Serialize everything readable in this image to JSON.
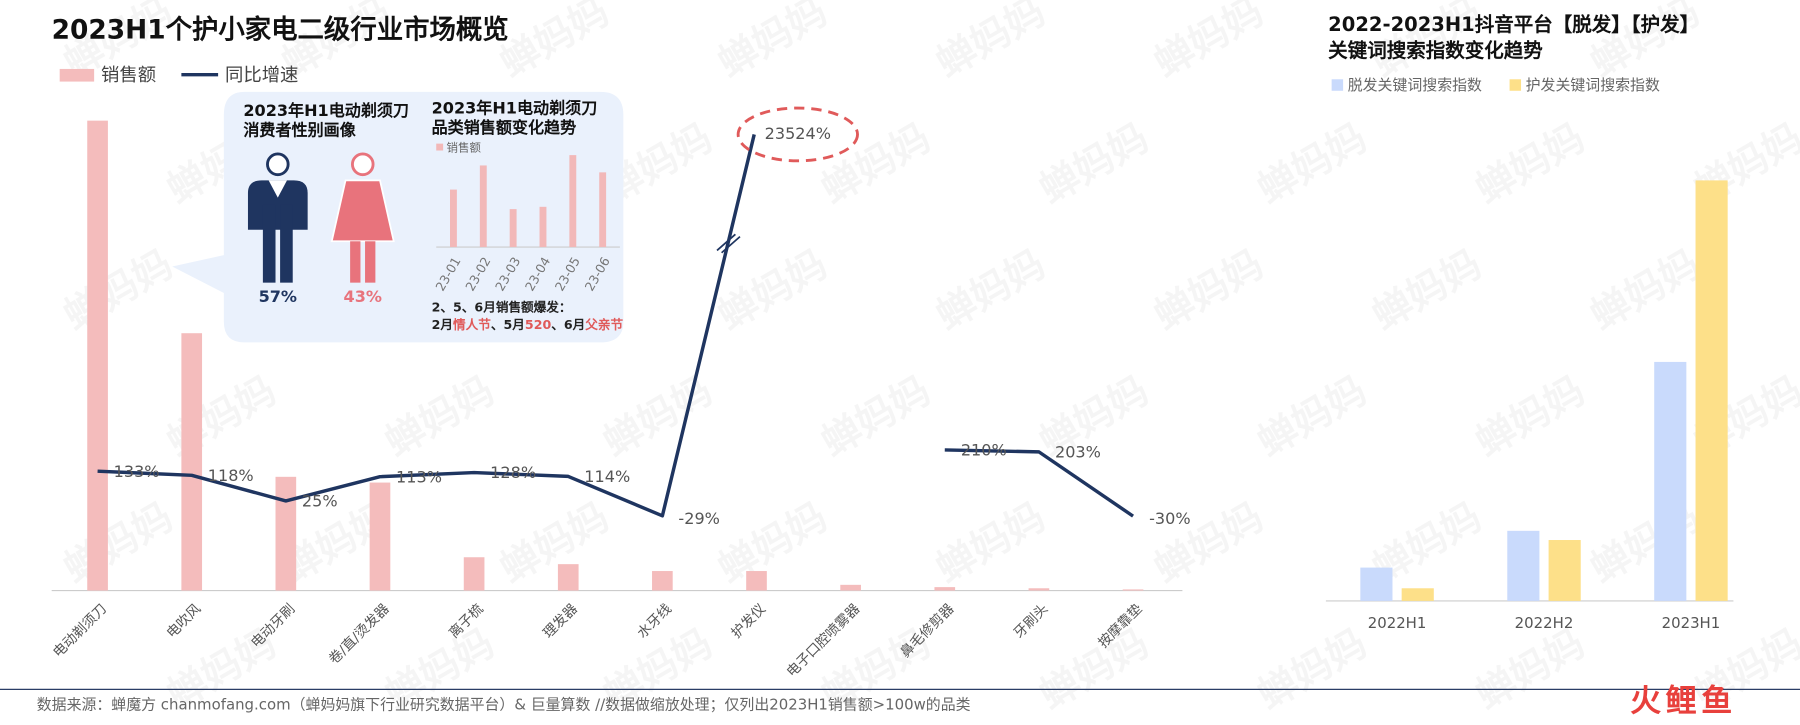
{
  "watermark": "蝉妈妈",
  "chart_data": [
    {
      "type": "combo",
      "title": "2023H1个护小家电二级行业市场概览",
      "categories": [
        "电动剃须刀",
        "电吹风",
        "电动牙刷",
        "卷/直/烫发器",
        "离子梳",
        "理发器",
        "水牙线",
        "护发仪",
        "电子口腔喷雾器",
        "鼻毛修剪器",
        "牙刷头",
        "按摩靠垫"
      ],
      "series": [
        {
          "name": "销售额",
          "type": "bar",
          "color": "#f4bcbc",
          "values": [
            409,
            224,
            99,
            94,
            29,
            23,
            17,
            17,
            5,
            3,
            2,
            1
          ]
        },
        {
          "name": "同比增速",
          "type": "line",
          "color": "#1f3560",
          "values": [
            133,
            118,
            25,
            113,
            128,
            114,
            -29,
            23524,
            null,
            210,
            203,
            -30
          ],
          "value_labels": [
            "133%",
            "118%",
            "25%",
            "113%",
            "128%",
            "114%",
            "-29%",
            "23524%",
            null,
            "210%",
            "203%",
            "-30%"
          ]
        }
      ],
      "axis_break": true,
      "highlight_color": "#e05a5a"
    },
    {
      "type": "pictogram",
      "title": [
        "2023年H1电动剃须刀",
        "消费者性别画像"
      ],
      "values": [
        57,
        43
      ],
      "value_labels": [
        "57%",
        "43%"
      ],
      "colors": [
        "#1f3560",
        "#e8737c"
      ]
    },
    {
      "type": "bar",
      "title": [
        "2023年H1电动剃须刀",
        "品类销售额变化趋势"
      ],
      "categories": [
        "23-01",
        "23-02",
        "23-03",
        "23-04",
        "23-05",
        "23-06"
      ],
      "series": [
        {
          "name": "销售额",
          "color": "#f2b8b8",
          "values": [
            50,
            71,
            33,
            35,
            80,
            65
          ]
        }
      ],
      "note": [
        "2、5、6月销售额爆发：",
        [
          {
            "text": "2月",
            "color": "#222222"
          },
          {
            "text": "情人节",
            "color": "#e05a5a"
          },
          {
            "text": "、5月",
            "color": "#222222"
          },
          {
            "text": "520",
            "color": "#e05a5a"
          },
          {
            "text": "、6月",
            "color": "#222222"
          },
          {
            "text": "父亲节",
            "color": "#e05a5a"
          }
        ]
      ]
    },
    {
      "type": "grouped-bar",
      "title": [
        "2022-2023H1抖音平台【脱发】【护发】",
        "关键词搜索指数变化趋势"
      ],
      "categories": [
        "2022H1",
        "2022H2",
        "2023H1"
      ],
      "series": [
        {
          "name": "脱发关键词搜索指数",
          "color": "#c9dafc",
          "values": [
            29,
            61,
            208
          ]
        },
        {
          "name": "护发关键词搜索指数",
          "color": "#fde089",
          "values": [
            11,
            53,
            366
          ]
        }
      ]
    }
  ],
  "footer": {
    "source": "数据来源：蝉魔方 chanmofang.com（蝉妈妈旗下行业研究数据平台）& 巨量算数   //数据做缩放处理；仅列出2023H1销售额>100w的品类",
    "logo": "火鲤鱼"
  }
}
